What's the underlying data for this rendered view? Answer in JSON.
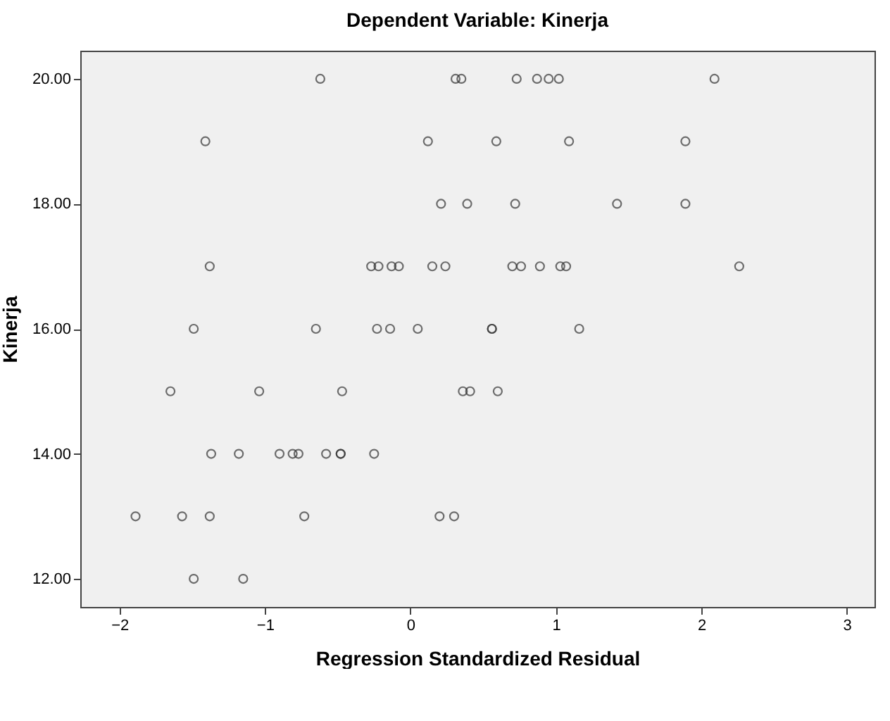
{
  "chart_data": {
    "type": "scatter",
    "title": "Dependent Variable: Kinerja",
    "xlabel": "Regression Standardized Residual",
    "ylabel": "Kinerja",
    "x": [
      -0.62,
      0.31,
      0.35,
      0.73,
      0.87,
      0.95,
      1.02,
      2.09,
      -1.41,
      0.12,
      0.59,
      1.09,
      1.89,
      0.21,
      0.39,
      0.72,
      1.42,
      1.89,
      -1.38,
      -0.27,
      -0.22,
      -0.13,
      -0.08,
      0.15,
      0.24,
      0.7,
      0.76,
      0.89,
      1.03,
      1.07,
      2.26,
      -1.49,
      -0.65,
      -0.23,
      -0.14,
      0.05,
      0.56,
      0.56,
      1.16,
      -1.65,
      -1.04,
      -0.47,
      0.36,
      0.41,
      0.6,
      -1.37,
      -1.18,
      -0.9,
      -0.81,
      -0.77,
      -0.58,
      -0.48,
      -0.48,
      -0.25,
      -1.89,
      -1.57,
      -1.38,
      -0.73,
      0.2,
      0.3,
      -1.49,
      -1.15
    ],
    "series": [
      {
        "color": "#333333",
        "values": [
          20,
          20,
          20,
          20,
          20,
          20,
          20,
          20,
          19,
          19,
          19,
          19,
          19,
          18,
          18,
          18,
          18,
          18,
          17,
          17,
          17,
          17,
          17,
          17,
          17,
          17,
          17,
          17,
          17,
          17,
          17,
          16,
          16,
          16,
          16,
          16,
          16,
          16,
          16,
          15,
          15,
          15,
          15,
          15,
          15,
          14,
          14,
          14,
          14,
          14,
          14,
          14,
          14,
          14,
          13,
          13,
          13,
          13,
          13,
          13,
          12,
          12
        ]
      }
    ],
    "xlim": [
      -2.27,
      3.19
    ],
    "xticks": [
      -2,
      -1,
      0,
      1,
      2,
      3
    ],
    "ylim": [
      11.55,
      20.45
    ],
    "yticks": [
      {
        "value": 12,
        "label": "12.00"
      },
      {
        "value": 14,
        "label": "14.00"
      },
      {
        "value": 16,
        "label": "16.00"
      },
      {
        "value": 18,
        "label": "18.00"
      },
      {
        "value": 20,
        "label": "20.00"
      }
    ],
    "marker": "circle",
    "grid": false
  }
}
